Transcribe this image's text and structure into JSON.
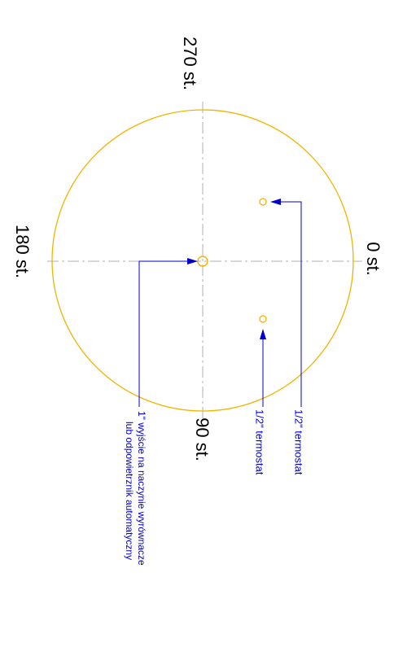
{
  "diagram": {
    "angle_labels": {
      "deg_0": "0 st.",
      "deg_90": "90 st.",
      "deg_180": "180 st.",
      "deg_270": "270 st."
    },
    "annotations": {
      "thermostat_upper": "1/2\" termostat",
      "thermostat_lower": "1/2\" termostat",
      "outlet_line1": "1\" wyjście na naczynie wyrównacze",
      "outlet_line2": "lub odpowietrznik automatyczny"
    },
    "colors": {
      "outline": "#f0b400",
      "centerline": "#b0b0b0",
      "annotation": "#0000cc",
      "text": "#000000"
    }
  }
}
